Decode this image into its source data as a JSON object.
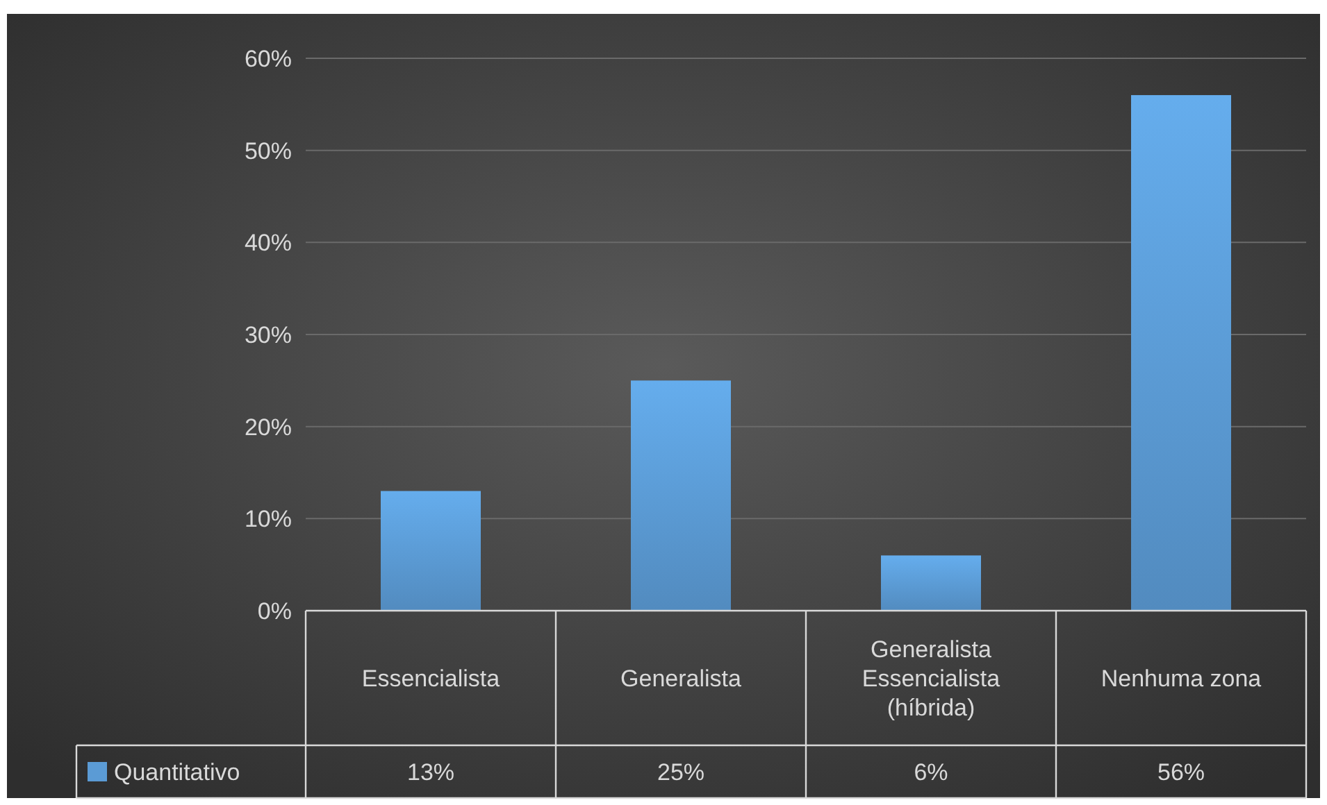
{
  "chart_data": {
    "type": "bar",
    "categories": [
      "Essencialista",
      "Generalista",
      "Generalista Essencialista (híbrida)",
      "Nenhuma zona"
    ],
    "series": [
      {
        "name": "Quantitativo",
        "color": "#5b9bd5",
        "values": [
          13,
          25,
          6,
          56
        ],
        "value_labels": [
          "13%",
          "25%",
          "6%",
          "56%"
        ]
      }
    ],
    "ylim": [
      0,
      60
    ],
    "yticks": [
      {
        "value": 0,
        "label": "0%"
      },
      {
        "value": 10,
        "label": "10%"
      },
      {
        "value": 20,
        "label": "20%"
      },
      {
        "value": 30,
        "label": "30%"
      },
      {
        "value": 40,
        "label": "40%"
      },
      {
        "value": 50,
        "label": "50%"
      },
      {
        "value": 60,
        "label": "60%"
      }
    ],
    "grid": "y",
    "legend": "bottom"
  }
}
